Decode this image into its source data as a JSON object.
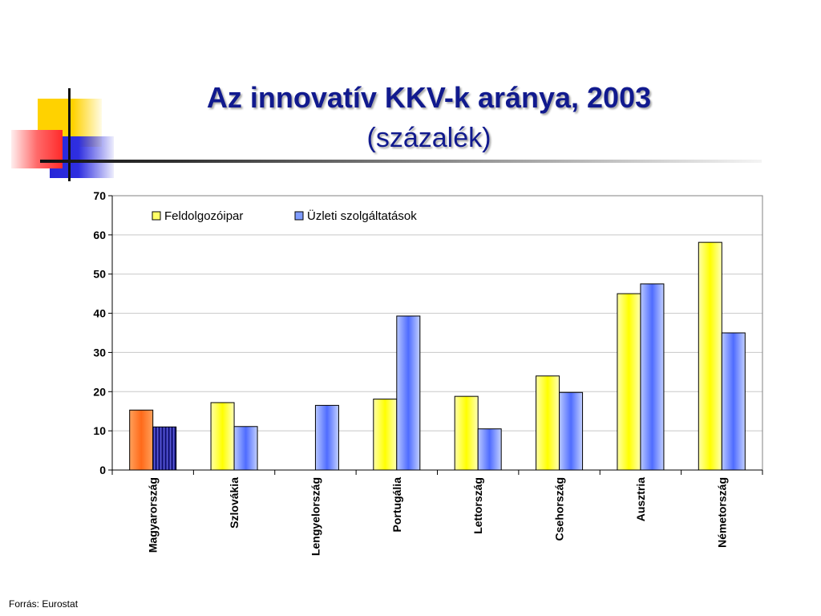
{
  "slide": {
    "title": "Az innovatív KKV-k aránya, 2003",
    "subtitle": "(százalék)",
    "source": "Forrás: Eurostat"
  },
  "chart_data": {
    "type": "bar",
    "categories": [
      "Magyarország",
      "Szlovákia",
      "Lengyelország",
      "Portugália",
      "Lettország",
      "Csehország",
      "Ausztria",
      "Németország"
    ],
    "series": [
      {
        "name": "Feldolgozóipar",
        "values": [
          15.3,
          17.2,
          null,
          18.1,
          18.8,
          24.0,
          45.0,
          58.1
        ],
        "color": "#ffff00"
      },
      {
        "name": "Üzleti szolgáltatások",
        "values": [
          11.0,
          11.1,
          16.5,
          39.3,
          10.5,
          19.8,
          47.5,
          35.0
        ],
        "color": "#6f8cff"
      }
    ],
    "highlight": {
      "category": "Magyarország",
      "colors": [
        "#ff6a1a",
        "#14147a"
      ]
    },
    "ylim": [
      0,
      70
    ],
    "yticks": [
      0,
      10,
      20,
      30,
      40,
      50,
      60,
      70
    ],
    "grid": true,
    "legend": "top-left"
  }
}
